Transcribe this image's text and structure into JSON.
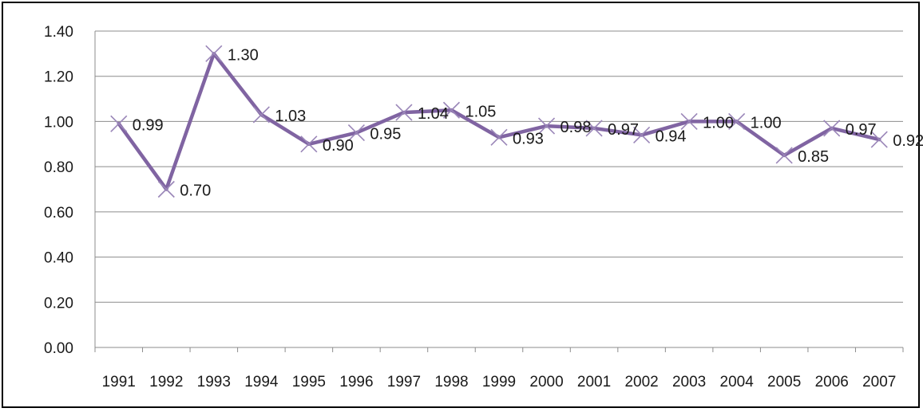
{
  "chart_data": {
    "type": "line",
    "title": "",
    "xlabel": "",
    "ylabel": "",
    "ylim": [
      0,
      1.4
    ],
    "yticks": [
      "0.00",
      "0.20",
      "0.40",
      "0.60",
      "0.80",
      "1.00",
      "1.20",
      "1.40"
    ],
    "categories": [
      "1991",
      "1992",
      "1993",
      "1994",
      "1995",
      "1996",
      "1997",
      "1998",
      "1999",
      "2000",
      "2001",
      "2002",
      "2003",
      "2004",
      "2005",
      "2006",
      "2007"
    ],
    "series": [
      {
        "values": [
          0.99,
          0.7,
          1.3,
          1.03,
          0.9,
          0.95,
          1.04,
          1.05,
          0.93,
          0.98,
          0.97,
          0.94,
          1.0,
          1.0,
          0.85,
          0.97,
          0.92
        ],
        "labels": [
          "0.99",
          "0.70",
          "1.30",
          "1.03",
          "0.90",
          "0.95",
          "1.04",
          "1.05",
          "0.93",
          "0.98",
          "0.97",
          "0.94",
          "1.00",
          "1.00",
          "0.85",
          "0.97",
          "0.92"
        ],
        "color": "#8064a2",
        "marker": "x"
      }
    ],
    "grid": true,
    "legend": "none"
  }
}
